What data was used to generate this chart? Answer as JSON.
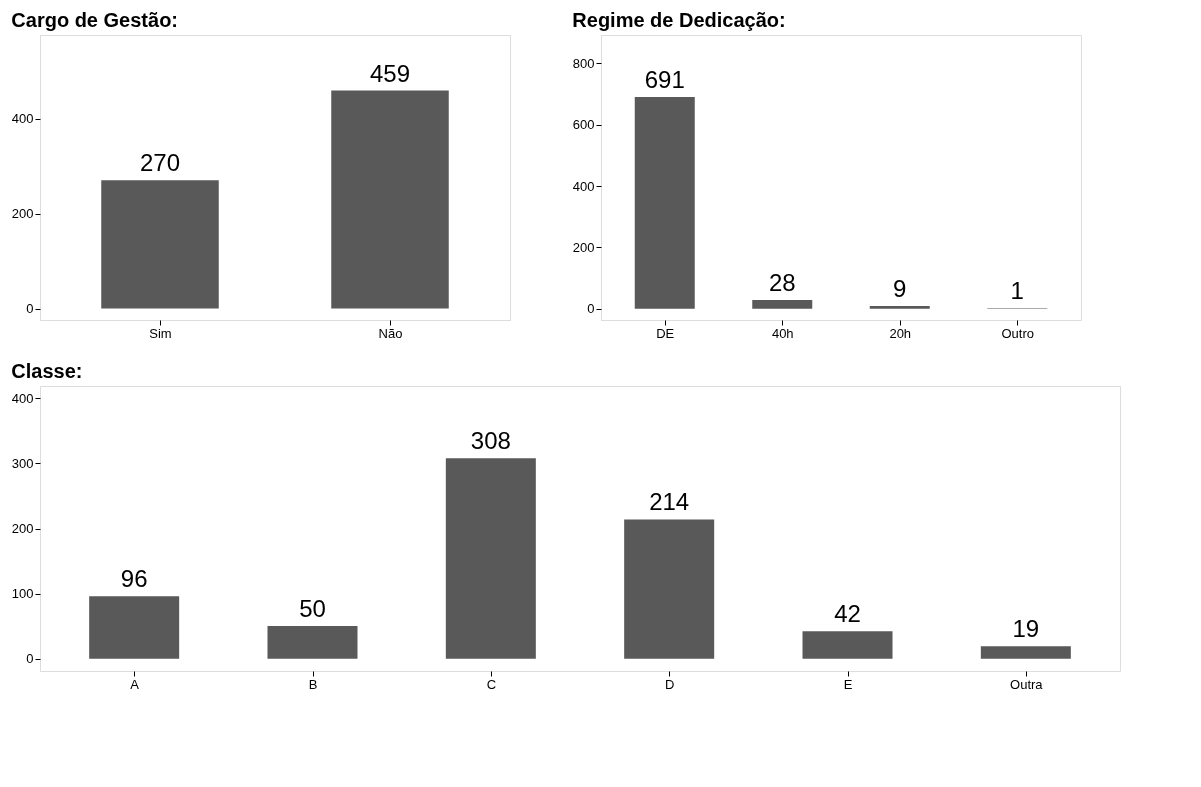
{
  "chart_data": [
    {
      "type": "bar",
      "title": "Cargo de Gestão:",
      "categories": [
        "Sim",
        "Não"
      ],
      "values": [
        270,
        459
      ],
      "color": "#595959",
      "ylim": [
        -24,
        576
      ],
      "yticks": [
        0,
        200,
        400
      ],
      "grid": false,
      "data_labels": true
    },
    {
      "type": "bar",
      "title": "Regime de Dedicação:",
      "categories": [
        "DE",
        "40h",
        "20h",
        "Outro"
      ],
      "values": [
        691,
        28,
        9,
        1
      ],
      "color": "#595959",
      "ylim": [
        -37,
        893
      ],
      "yticks": [
        0,
        200,
        400,
        600,
        800
      ],
      "grid": false,
      "data_labels": true
    },
    {
      "type": "bar",
      "title": "Classe:",
      "categories": [
        "A",
        "B",
        "C",
        "D",
        "E",
        "Outra"
      ],
      "values": [
        96,
        50,
        308,
        214,
        42,
        19
      ],
      "color": "#595959",
      "ylim": [
        -19,
        419
      ],
      "yticks": [
        0,
        100,
        200,
        300,
        400
      ],
      "grid": false,
      "data_labels": true
    }
  ]
}
